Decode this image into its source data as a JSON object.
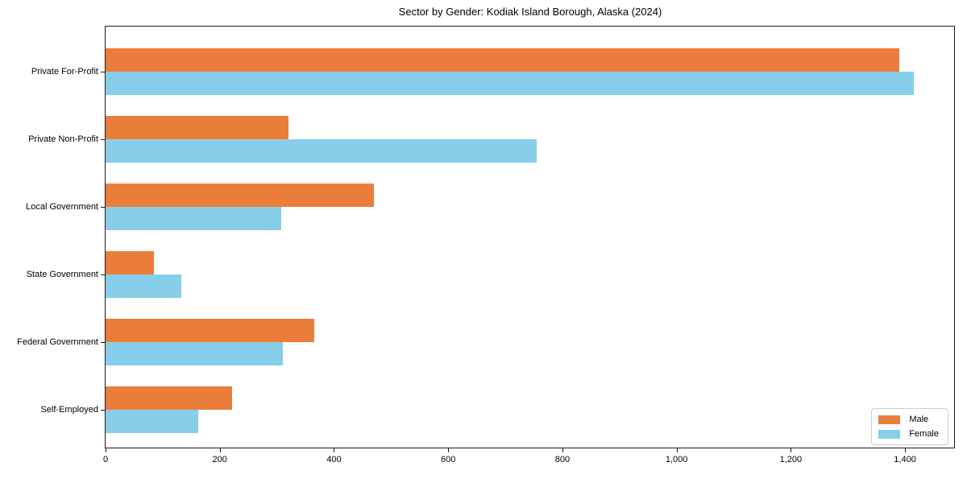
{
  "chart_data": {
    "type": "bar",
    "orientation": "horizontal",
    "title": "Sector by Gender: Kodiak Island Borough, Alaska (2024)",
    "xlabel": "",
    "ylabel": "",
    "categories": [
      "Private For-Profit",
      "Private Non-Profit",
      "Local Government",
      "State Government",
      "Federal Government",
      "Self-Employed"
    ],
    "series": [
      {
        "name": "Male",
        "color": "#EB7D3B",
        "values": [
          1390,
          320,
          470,
          84,
          365,
          222
        ]
      },
      {
        "name": "Female",
        "color": "#87CEEB",
        "values": [
          1415,
          755,
          307,
          133,
          310,
          162
        ]
      }
    ],
    "xlim": [
      0,
      1486
    ],
    "x_ticks": {
      "values": [
        0,
        200,
        400,
        600,
        800,
        1000,
        1200,
        1400
      ],
      "labels": [
        "0",
        "200",
        "400",
        "600",
        "800",
        "1,000",
        "1,200",
        "1,400"
      ]
    },
    "grid": false,
    "legend": {
      "position": "lower right",
      "entries": [
        "Male",
        "Female"
      ]
    }
  }
}
